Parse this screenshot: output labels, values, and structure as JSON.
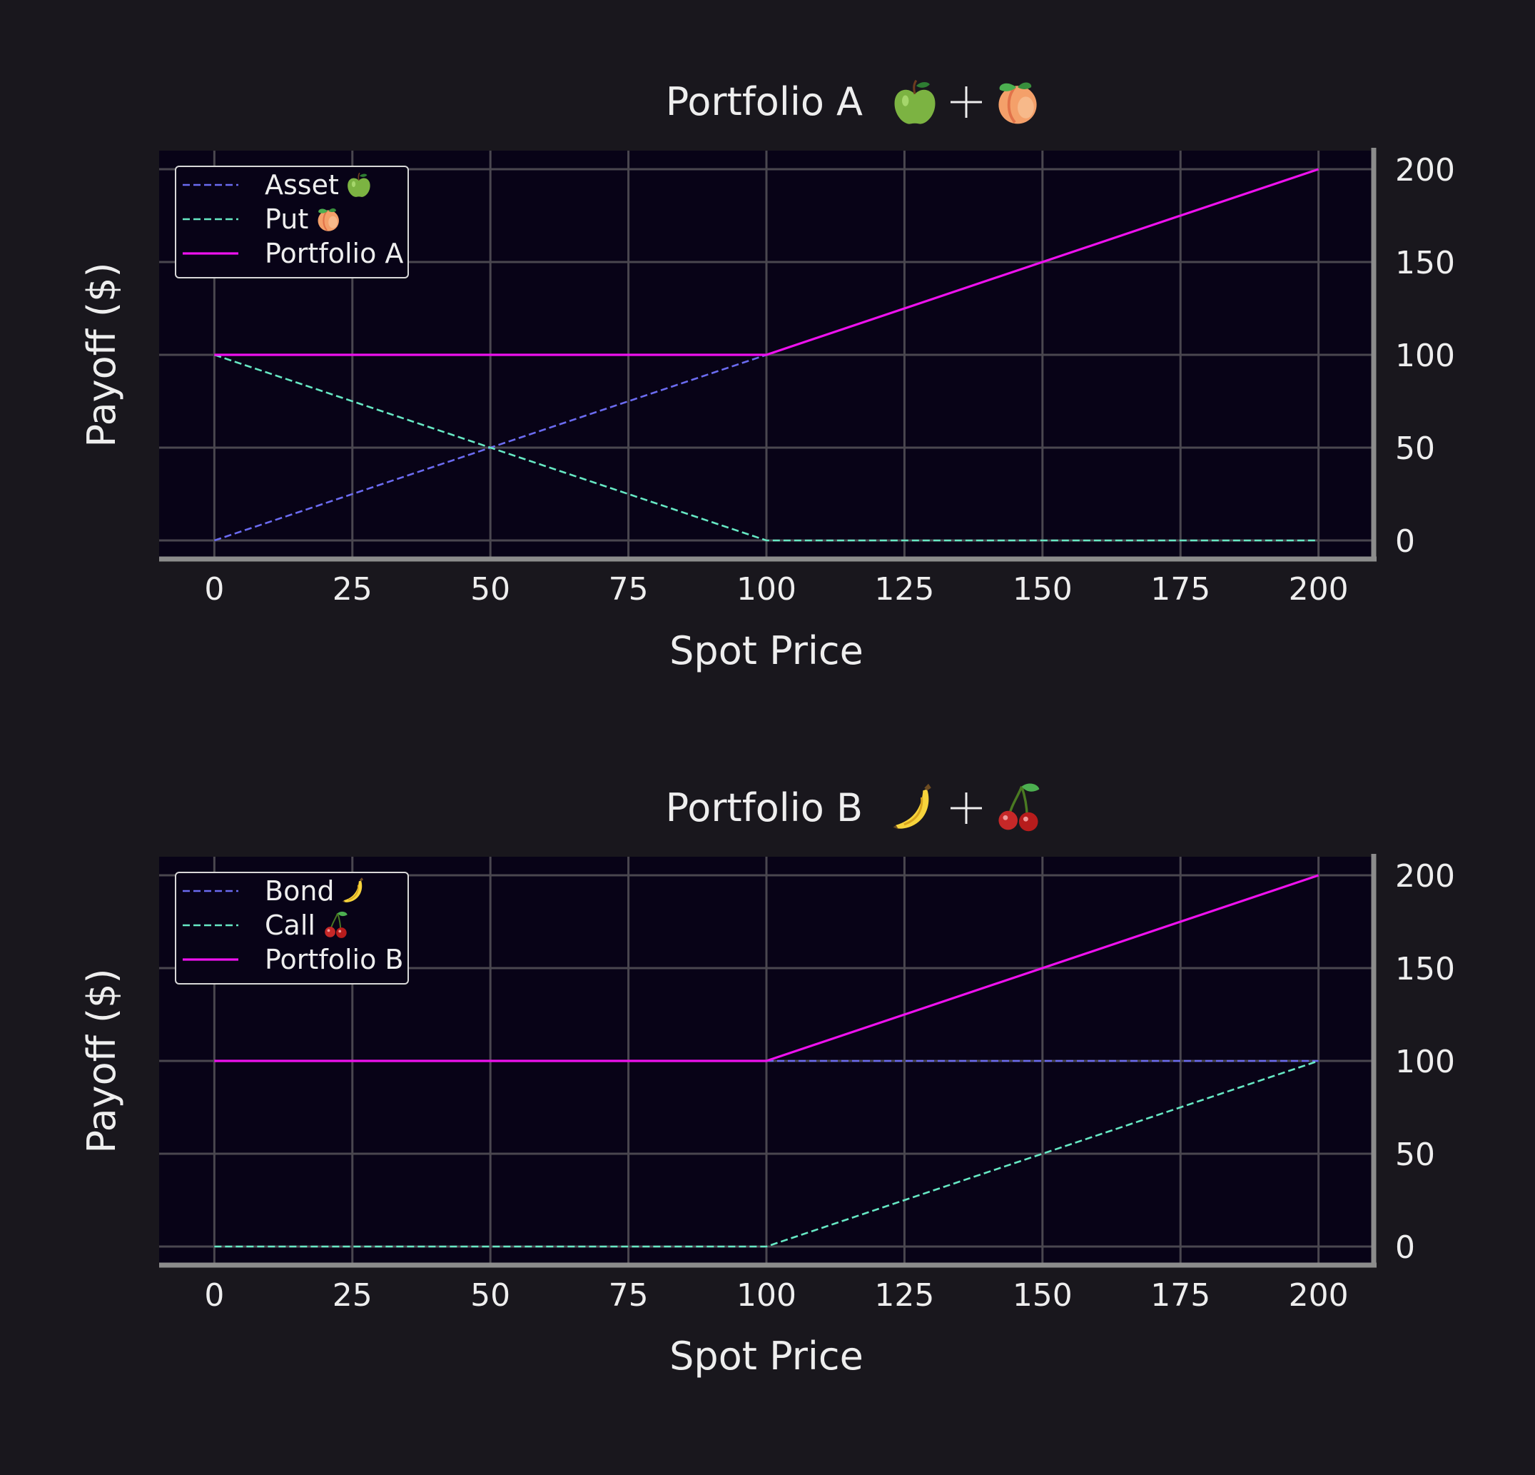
{
  "colors": {
    "figure_bg": "#19171d",
    "plot_bg": "#080317",
    "grid": "#4a474f",
    "spine": "#8c8c8c",
    "text": "#eeeeee",
    "legend_bg": "#080317",
    "legend_border": "#d8d8d8"
  },
  "chart_data": [
    {
      "type": "line",
      "title": "Portfolio A",
      "title_icons": [
        "green-apple-icon",
        "plus",
        "peach-icon"
      ],
      "xlabel": "Spot Price",
      "ylabel": "Payoff ($)",
      "xlim": [
        -10,
        210
      ],
      "ylim": [
        -10,
        210
      ],
      "x_ticks": [
        0,
        25,
        50,
        75,
        100,
        125,
        150,
        175,
        200
      ],
      "y_ticks": [
        0,
        50,
        100,
        150,
        200
      ],
      "y_axis_side": "right",
      "grid": true,
      "legend": "top-left",
      "series": [
        {
          "name": "Asset",
          "icon": "green-apple-icon",
          "style": "dashed",
          "color": "#6b6bf0",
          "x": [
            0,
            100
          ],
          "y": [
            0,
            100
          ]
        },
        {
          "name": "Put",
          "icon": "peach-icon",
          "style": "dashed",
          "color": "#66e8c4",
          "x": [
            0,
            100,
            200
          ],
          "y": [
            100,
            0,
            0
          ]
        },
        {
          "name": "Portfolio A",
          "style": "solid",
          "color": "#ee11ee",
          "x": [
            0,
            100,
            200
          ],
          "y": [
            100,
            100,
            200
          ]
        }
      ]
    },
    {
      "type": "line",
      "title": "Portfolio B",
      "title_icons": [
        "banana-icon",
        "plus",
        "cherry-icon"
      ],
      "xlabel": "Spot Price",
      "ylabel": "Payoff ($)",
      "xlim": [
        -10,
        210
      ],
      "ylim": [
        -10,
        210
      ],
      "x_ticks": [
        0,
        25,
        50,
        75,
        100,
        125,
        150,
        175,
        200
      ],
      "y_ticks": [
        0,
        50,
        100,
        150,
        200
      ],
      "y_axis_side": "right",
      "grid": true,
      "legend": "top-left",
      "series": [
        {
          "name": "Bond",
          "icon": "banana-icon",
          "style": "dashed",
          "color": "#6b6bf0",
          "x": [
            100,
            200
          ],
          "y": [
            100,
            100
          ]
        },
        {
          "name": "Call",
          "icon": "cherry-icon",
          "style": "dashed",
          "color": "#66e8c4",
          "x": [
            0,
            100,
            200
          ],
          "y": [
            0,
            0,
            100
          ]
        },
        {
          "name": "Portfolio B",
          "style": "solid",
          "color": "#ee11ee",
          "x": [
            0,
            100,
            200
          ],
          "y": [
            100,
            100,
            200
          ]
        }
      ]
    }
  ]
}
